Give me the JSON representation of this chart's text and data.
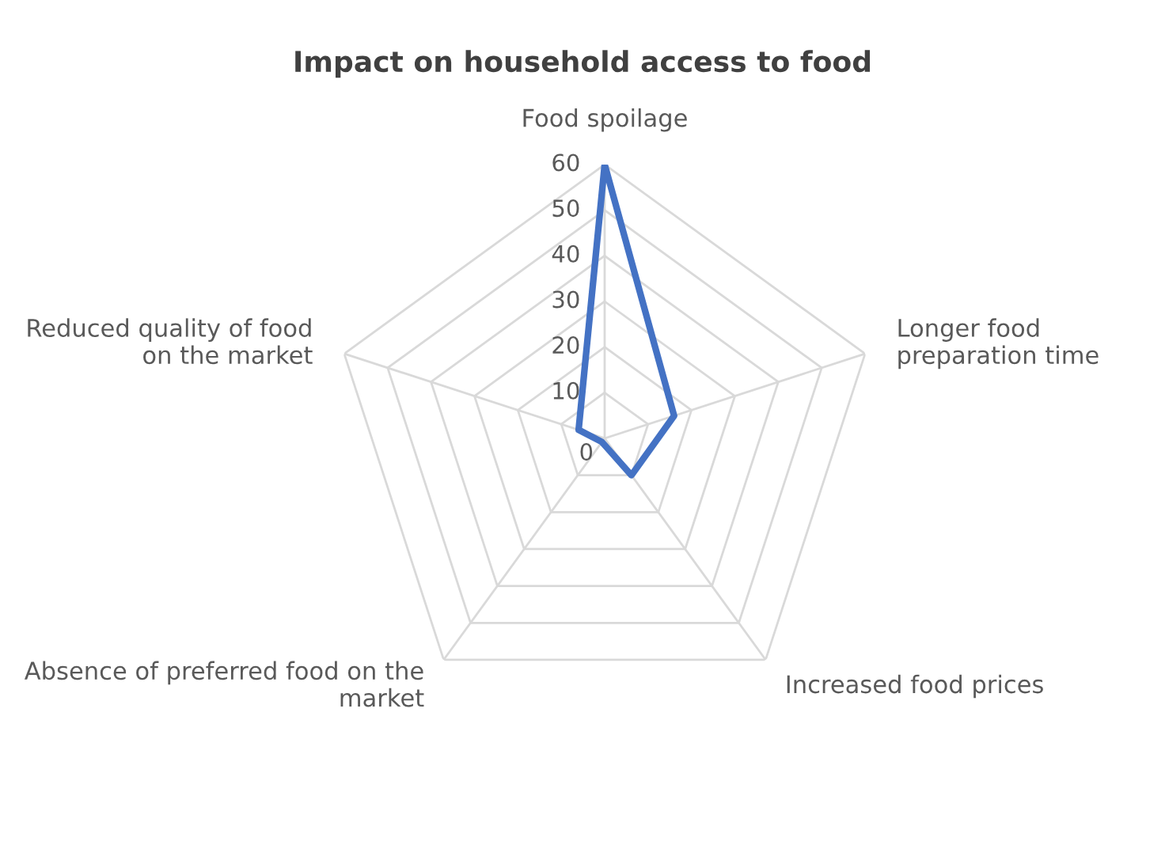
{
  "chart_data": {
    "type": "radar",
    "title": "Impact on household access to food",
    "categories": [
      "Food spoilage",
      "Longer food preparation time",
      "Increased food prices",
      "Absence of preferred food on the market",
      "Reduced quality of food on the market"
    ],
    "series": [
      {
        "color": "#4472c4",
        "values": [
          60,
          16,
          10,
          1,
          6
        ]
      }
    ],
    "ylim": [
      0,
      60
    ],
    "yticks": [
      0,
      10,
      20,
      30,
      40,
      50,
      60
    ],
    "grid": true,
    "legend": false,
    "marker": "none",
    "line_style": "solid"
  }
}
